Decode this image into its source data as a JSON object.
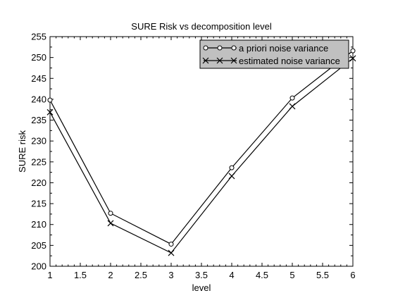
{
  "chart_data": {
    "type": "line",
    "title": "SURE Risk vs decomposition level",
    "xlabel": "level",
    "ylabel": "SURE risk",
    "xlim": [
      1,
      6
    ],
    "ylim": [
      200,
      255
    ],
    "xticks": [
      "1",
      "1.5",
      "2",
      "2.5",
      "3",
      "3.5",
      "4",
      "4.5",
      "5",
      "5.5",
      "6"
    ],
    "yticks": [
      "200",
      "205",
      "210",
      "215",
      "220",
      "225",
      "230",
      "235",
      "240",
      "245",
      "250",
      "255"
    ],
    "x": [
      1,
      2,
      3,
      4,
      5,
      6
    ],
    "series": [
      {
        "name": "a priori noise variance",
        "marker": "circle",
        "values": [
          239.8,
          212.7,
          205.3,
          223.6,
          240.3,
          251.6
        ]
      },
      {
        "name": "estimated noise variance",
        "marker": "x",
        "values": [
          236.9,
          210.3,
          203.2,
          221.6,
          238.3,
          249.8
        ]
      }
    ],
    "legend": "top-right",
    "grid": false,
    "colors": {
      "line": "#000000",
      "legend_bg": "#c0c0c0",
      "background": "#ffffff"
    }
  }
}
